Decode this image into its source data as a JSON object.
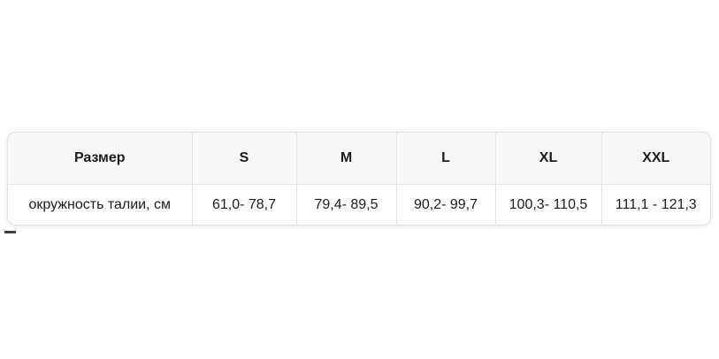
{
  "table": {
    "header_labels": [
      "Размер",
      "S",
      "M",
      "L",
      "XL",
      "XXL"
    ],
    "row": {
      "header": "окружность талии, см",
      "values": [
        "61,0- 78,7",
        "79,4- 89,5",
        "90,2- 99,7",
        "100,3- 110,5",
        "111,1 - 121,3"
      ]
    }
  },
  "colors": {
    "header_background": "#f8f8f8",
    "border": "#e2e2e2",
    "text": "#1c1c1c",
    "page_background": "#ffffff"
  }
}
